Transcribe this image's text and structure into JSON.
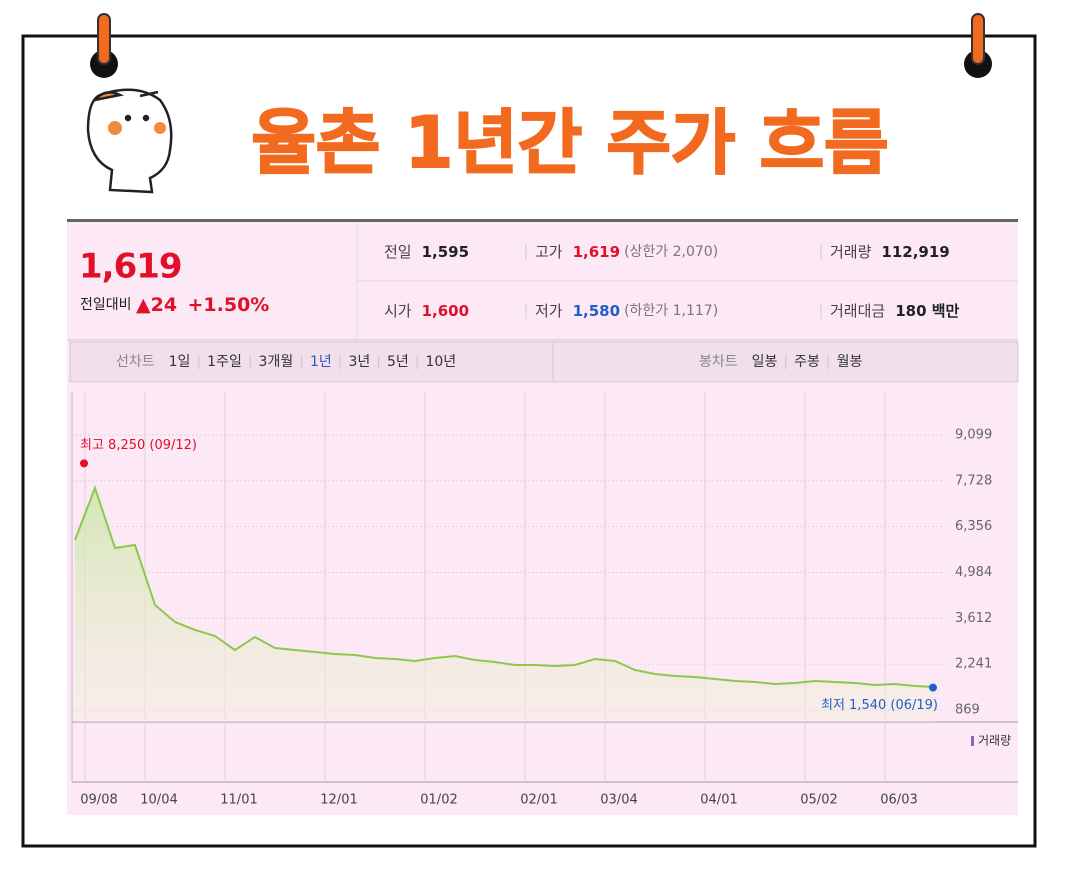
{
  "title": "율촌 1년간 주가 흐름",
  "quote": {
    "price": "1,619",
    "change_label": "전일대비",
    "change": "▲24",
    "change_rate": "+1.50%"
  },
  "summary": [
    {
      "label": "전일",
      "value": "1,595",
      "color": "#222222"
    },
    {
      "label": "고가",
      "value": "1,619",
      "note": "(상한가 2,070)",
      "color": "#e0102a"
    },
    {
      "label": "거래량",
      "value": "112,919",
      "color": "#222222"
    },
    {
      "label": "시가",
      "value": "1,600",
      "color": "#e0102a"
    },
    {
      "label": "저가",
      "value": "1,580",
      "note": "(하한가 1,117)",
      "color": "#1f5fc8"
    },
    {
      "label": "거래대금",
      "value": "180 백만",
      "color": "#222222"
    }
  ],
  "line_tabs": {
    "label": "선차트",
    "items": [
      "1일",
      "1주일",
      "3개월",
      "1년",
      "3년",
      "5년",
      "10년"
    ],
    "active": 3
  },
  "candle_tabs": {
    "label": "봉차트",
    "items": [
      "일봉",
      "주봉",
      "월봉"
    ]
  },
  "chart_data": {
    "type": "line",
    "color": "#8cc84b",
    "grid": true,
    "categories": [
      null,
      "09/08",
      null,
      null,
      "10/04",
      null,
      null,
      null,
      "11/01",
      null,
      null,
      null,
      null,
      "12/01",
      null,
      null,
      null,
      null,
      "01/02",
      null,
      null,
      null,
      null,
      "02/01",
      null,
      null,
      null,
      "03/04",
      null,
      null,
      null,
      null,
      "04/01",
      null,
      null,
      null,
      null,
      "05/02",
      null,
      null,
      null,
      "06/03",
      null,
      null
    ],
    "values": [
      5957,
      7514,
      5718,
      5808,
      4012,
      3503,
      3264,
      3084,
      2665,
      3054,
      2725,
      2665,
      2605,
      2545,
      2515,
      2425,
      2396,
      2336,
      2425,
      2485,
      2366,
      2306,
      2216,
      2216,
      2186,
      2216,
      2396,
      2336,
      2066,
      1946,
      1887,
      1857,
      1797,
      1737,
      1707,
      1647,
      1677,
      1737,
      1707,
      1677,
      1617,
      1647,
      1587,
      1557
    ],
    "ylim": [
      869,
      9099
    ],
    "yticks": [
      {
        "value": 869,
        "label": "869"
      },
      {
        "value": 2241,
        "label": "2,241"
      },
      {
        "value": 3612,
        "label": "3,612"
      },
      {
        "value": 4984,
        "label": "4,984"
      },
      {
        "value": 6356,
        "label": "6,356"
      },
      {
        "value": 7728,
        "label": "7,728"
      },
      {
        "value": 9099,
        "label": "9,099"
      }
    ],
    "annotations": [
      {
        "text": "최고 8,250 (09/12)",
        "value": 8250,
        "color": "#e0102a"
      },
      {
        "text": "최저 1,540 (06/19)",
        "value": 1540,
        "color": "#1f5fc8"
      }
    ],
    "volume_label": "거래량"
  }
}
